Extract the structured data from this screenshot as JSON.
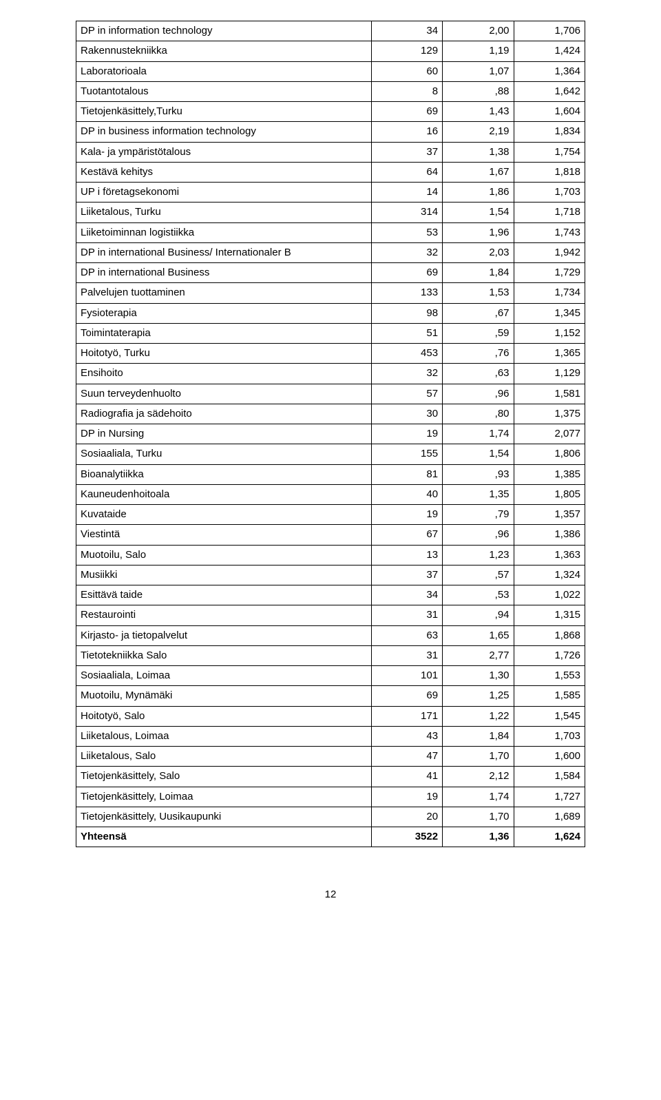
{
  "table": {
    "background_color": "#ffffff",
    "border_color": "#000000",
    "font_size": 15,
    "text_color": "#000000",
    "rows": [
      {
        "label": "DP in information technology",
        "c1": "34",
        "c2": "2,00",
        "c3": "1,706"
      },
      {
        "label": "Rakennustekniikka",
        "c1": "129",
        "c2": "1,19",
        "c3": "1,424"
      },
      {
        "label": "Laboratorioala",
        "c1": "60",
        "c2": "1,07",
        "c3": "1,364"
      },
      {
        "label": "Tuotantotalous",
        "c1": "8",
        "c2": ",88",
        "c3": "1,642"
      },
      {
        "label": "Tietojenkäsittely,Turku",
        "c1": "69",
        "c2": "1,43",
        "c3": "1,604"
      },
      {
        "label": "DP in business information technology",
        "c1": "16",
        "c2": "2,19",
        "c3": "1,834"
      },
      {
        "label": "Kala- ja ympäristötalous",
        "c1": "37",
        "c2": "1,38",
        "c3": "1,754"
      },
      {
        "label": "Kestävä kehitys",
        "c1": "64",
        "c2": "1,67",
        "c3": "1,818"
      },
      {
        "label": "UP i företagsekonomi",
        "c1": "14",
        "c2": "1,86",
        "c3": "1,703"
      },
      {
        "label": "Liiketalous, Turku",
        "c1": "314",
        "c2": "1,54",
        "c3": "1,718"
      },
      {
        "label": "Liiketoiminnan logistiikka",
        "c1": "53",
        "c2": "1,96",
        "c3": "1,743"
      },
      {
        "label": "DP in international Business/ Internationaler B",
        "c1": "32",
        "c2": "2,03",
        "c3": "1,942"
      },
      {
        "label": "DP in international Business",
        "c1": "69",
        "c2": "1,84",
        "c3": "1,729"
      },
      {
        "label": "Palvelujen tuottaminen",
        "c1": "133",
        "c2": "1,53",
        "c3": "1,734"
      },
      {
        "label": "Fysioterapia",
        "c1": "98",
        "c2": ",67",
        "c3": "1,345"
      },
      {
        "label": "Toimintaterapia",
        "c1": "51",
        "c2": ",59",
        "c3": "1,152"
      },
      {
        "label": "Hoitotyö, Turku",
        "c1": "453",
        "c2": ",76",
        "c3": "1,365"
      },
      {
        "label": "Ensihoito",
        "c1": "32",
        "c2": ",63",
        "c3": "1,129"
      },
      {
        "label": "Suun terveydenhuolto",
        "c1": "57",
        "c2": ",96",
        "c3": "1,581"
      },
      {
        "label": "Radiografia ja sädehoito",
        "c1": "30",
        "c2": ",80",
        "c3": "1,375"
      },
      {
        "label": "DP in Nursing",
        "c1": "19",
        "c2": "1,74",
        "c3": "2,077"
      },
      {
        "label": "Sosiaaliala, Turku",
        "c1": "155",
        "c2": "1,54",
        "c3": "1,806"
      },
      {
        "label": "Bioanalytiikka",
        "c1": "81",
        "c2": ",93",
        "c3": "1,385"
      },
      {
        "label": "Kauneudenhoitoala",
        "c1": "40",
        "c2": "1,35",
        "c3": "1,805"
      },
      {
        "label": "Kuvataide",
        "c1": "19",
        "c2": ",79",
        "c3": "1,357"
      },
      {
        "label": "Viestintä",
        "c1": "67",
        "c2": ",96",
        "c3": "1,386"
      },
      {
        "label": "Muotoilu, Salo",
        "c1": "13",
        "c2": "1,23",
        "c3": "1,363"
      },
      {
        "label": "Musiikki",
        "c1": "37",
        "c2": ",57",
        "c3": "1,324"
      },
      {
        "label": "Esittävä taide",
        "c1": "34",
        "c2": ",53",
        "c3": "1,022"
      },
      {
        "label": "Restaurointi",
        "c1": "31",
        "c2": ",94",
        "c3": "1,315"
      },
      {
        "label": "Kirjasto- ja tietopalvelut",
        "c1": "63",
        "c2": "1,65",
        "c3": "1,868"
      },
      {
        "label": "Tietotekniikka Salo",
        "c1": "31",
        "c2": "2,77",
        "c3": "1,726"
      },
      {
        "label": "Sosiaaliala, Loimaa",
        "c1": "101",
        "c2": "1,30",
        "c3": "1,553"
      },
      {
        "label": "Muotoilu, Mynämäki",
        "c1": "69",
        "c2": "1,25",
        "c3": "1,585"
      },
      {
        "label": "Hoitotyö, Salo",
        "c1": "171",
        "c2": "1,22",
        "c3": "1,545"
      },
      {
        "label": "Liiketalous, Loimaa",
        "c1": "43",
        "c2": "1,84",
        "c3": "1,703"
      },
      {
        "label": "Liiketalous, Salo",
        "c1": "47",
        "c2": "1,70",
        "c3": "1,600"
      },
      {
        "label": "Tietojenkäsittely, Salo",
        "c1": "41",
        "c2": "2,12",
        "c3": "1,584"
      },
      {
        "label": "Tietojenkäsittely, Loimaa",
        "c1": "19",
        "c2": "1,74",
        "c3": "1,727"
      },
      {
        "label": "Tietojenkäsittely, Uusikaupunki",
        "c1": "20",
        "c2": "1,70",
        "c3": "1,689"
      },
      {
        "label": "Yhteensä",
        "c1": "3522",
        "c2": "1,36",
        "c3": "1,624",
        "bold": true
      }
    ]
  },
  "page_number": "12"
}
